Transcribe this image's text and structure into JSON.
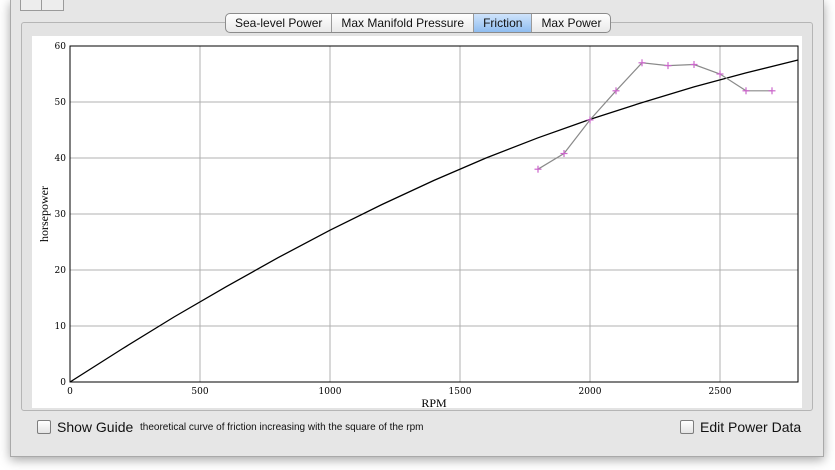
{
  "tabs": [
    {
      "label": "Sea-level Power",
      "active": false
    },
    {
      "label": "Max Manifold Pressure",
      "active": false
    },
    {
      "label": "Friction",
      "active": true
    },
    {
      "label": "Max Power",
      "active": false
    }
  ],
  "controls": {
    "show_guide_label": "Show Guide",
    "show_guide_checked": false,
    "description": "theoretical curve of friction increasing with the square of the rpm",
    "edit_power_label": "Edit Power Data",
    "edit_power_checked": false
  },
  "colors": {
    "curve": "#000000",
    "data_line": "#8a8a8a",
    "marker": "#cc66cc",
    "grid": "#b0b0b0",
    "active_tab": "#9dc4f2"
  },
  "chart_data": {
    "type": "line",
    "xlabel": "RPM",
    "ylabel": "horsepower",
    "xlim": [
      0,
      2800
    ],
    "ylim": [
      0,
      60
    ],
    "xticks": [
      0,
      500,
      1000,
      1500,
      2000,
      2500
    ],
    "yticks": [
      0,
      10,
      20,
      30,
      40,
      50,
      60
    ],
    "grid": true,
    "series": [
      {
        "style": "curve",
        "x": [
          0,
          200,
          400,
          600,
          800,
          1000,
          1200,
          1400,
          1600,
          1800,
          2000,
          2200,
          2400,
          2600,
          2800
        ],
        "values": [
          0,
          5.9,
          11.6,
          17.0,
          22.2,
          27.1,
          31.7,
          36.0,
          40.0,
          43.6,
          46.9,
          49.9,
          52.7,
          55.2,
          57.5
        ]
      },
      {
        "style": "markers",
        "x": [
          1800,
          1900,
          2000,
          2100,
          2200,
          2300,
          2400,
          2500,
          2600,
          2700
        ],
        "values": [
          38,
          40.8,
          46.8,
          52,
          57,
          56.5,
          56.7,
          55,
          52,
          52
        ]
      }
    ]
  }
}
